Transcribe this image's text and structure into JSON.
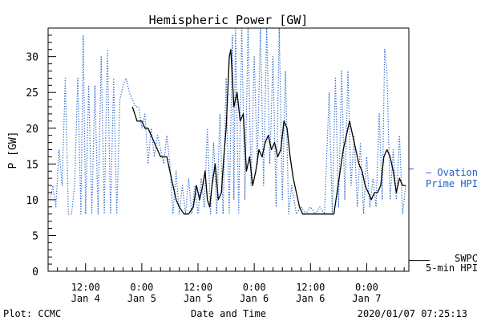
{
  "chart_data": {
    "type": "line",
    "title": "Hemispheric Power [GW]",
    "ylabel": "P [GW]",
    "xlabel": "Date and Time",
    "ylim": [
      0,
      34
    ],
    "xlim": [
      "2020-01-04T04:00",
      "2020-01-07T09:00"
    ],
    "yticks": [
      0,
      5,
      10,
      15,
      20,
      25,
      30
    ],
    "xticks": [
      {
        "time": "2020-01-04T12:00",
        "line1": "12:00",
        "line2": "Jan 4"
      },
      {
        "time": "2020-01-05T00:00",
        "line1": "0:00",
        "line2": "Jan 5"
      },
      {
        "time": "2020-01-05T12:00",
        "line1": "12:00",
        "line2": "Jan 5"
      },
      {
        "time": "2020-01-06T00:00",
        "line1": "0:00",
        "line2": "Jan 6"
      },
      {
        "time": "2020-01-06T12:00",
        "line1": "12:00",
        "line2": "Jan 6"
      },
      {
        "time": "2020-01-07T00:00",
        "line1": "0:00",
        "line2": "Jan 7"
      }
    ],
    "series": [
      {
        "name": "Ovation Prime HPI",
        "legend_lines": [
          "— Ovation",
          "Prime HPI"
        ],
        "color": "#1f5fc8",
        "style": "dotted",
        "points": [
          [
            "2020-01-04T04:30",
            10
          ],
          [
            "2020-01-04T05:00",
            12
          ],
          [
            "2020-01-04T05:40",
            9
          ],
          [
            "2020-01-04T06:20",
            17
          ],
          [
            "2020-01-04T07:00",
            12
          ],
          [
            "2020-01-04T07:40",
            27
          ],
          [
            "2020-01-04T08:20",
            8
          ],
          [
            "2020-01-04T09:00",
            8
          ],
          [
            "2020-01-04T09:40",
            12
          ],
          [
            "2020-01-04T10:20",
            27
          ],
          [
            "2020-01-04T11:00",
            8
          ],
          [
            "2020-01-04T11:30",
            33
          ],
          [
            "2020-01-04T12:00",
            8
          ],
          [
            "2020-01-04T12:40",
            26
          ],
          [
            "2020-01-04T13:20",
            8
          ],
          [
            "2020-01-04T14:00",
            26
          ],
          [
            "2020-01-04T14:40",
            8
          ],
          [
            "2020-01-04T15:20",
            30
          ],
          [
            "2020-01-04T16:00",
            8
          ],
          [
            "2020-01-04T16:40",
            31
          ],
          [
            "2020-01-04T17:20",
            8
          ],
          [
            "2020-01-04T18:00",
            27
          ],
          [
            "2020-01-04T18:40",
            8
          ],
          [
            "2020-01-04T19:20",
            24
          ],
          [
            "2020-01-04T20:00",
            26
          ],
          [
            "2020-01-04T20:40",
            27
          ],
          [
            "2020-01-04T21:20",
            25
          ],
          [
            "2020-01-04T22:00",
            24
          ],
          [
            "2020-01-04T22:40",
            23
          ],
          [
            "2020-01-04T23:20",
            23
          ],
          [
            "2020-01-05T00:00",
            20
          ],
          [
            "2020-01-05T00:40",
            22
          ],
          [
            "2020-01-05T01:20",
            15
          ],
          [
            "2020-01-05T02:00",
            20
          ],
          [
            "2020-01-05T02:40",
            16
          ],
          [
            "2020-01-05T03:20",
            19
          ],
          [
            "2020-01-05T04:00",
            17
          ],
          [
            "2020-01-05T04:40",
            15
          ],
          [
            "2020-01-05T05:20",
            19
          ],
          [
            "2020-01-05T06:00",
            15
          ],
          [
            "2020-01-05T06:40",
            8
          ],
          [
            "2020-01-05T07:20",
            14
          ],
          [
            "2020-01-05T08:00",
            8
          ],
          [
            "2020-01-05T08:40",
            12
          ],
          [
            "2020-01-05T09:20",
            8
          ],
          [
            "2020-01-05T10:00",
            13
          ],
          [
            "2020-01-05T10:40",
            8
          ],
          [
            "2020-01-05T11:20",
            12
          ],
          [
            "2020-01-05T12:00",
            8
          ],
          [
            "2020-01-05T12:40",
            13
          ],
          [
            "2020-01-05T13:20",
            9
          ],
          [
            "2020-01-05T14:00",
            20
          ],
          [
            "2020-01-05T14:40",
            8
          ],
          [
            "2020-01-05T15:20",
            18
          ],
          [
            "2020-01-05T16:00",
            8
          ],
          [
            "2020-01-05T16:40",
            22
          ],
          [
            "2020-01-05T17:20",
            8
          ],
          [
            "2020-01-05T18:00",
            27
          ],
          [
            "2020-01-05T18:40",
            8
          ],
          [
            "2020-01-05T19:20",
            33
          ],
          [
            "2020-01-05T19:40",
            10
          ],
          [
            "2020-01-05T20:00",
            34
          ],
          [
            "2020-01-05T20:40",
            8
          ],
          [
            "2020-01-05T21:20",
            34
          ],
          [
            "2020-01-05T22:00",
            10
          ],
          [
            "2020-01-05T22:40",
            34
          ],
          [
            "2020-01-05T23:20",
            12
          ],
          [
            "2020-01-06T00:00",
            30
          ],
          [
            "2020-01-06T00:40",
            15
          ],
          [
            "2020-01-06T01:20",
            34
          ],
          [
            "2020-01-06T02:00",
            12
          ],
          [
            "2020-01-06T02:40",
            34
          ],
          [
            "2020-01-06T03:20",
            15
          ],
          [
            "2020-01-06T04:00",
            30
          ],
          [
            "2020-01-06T04:40",
            9
          ],
          [
            "2020-01-06T05:20",
            34
          ],
          [
            "2020-01-06T06:00",
            10
          ],
          [
            "2020-01-06T06:40",
            28
          ],
          [
            "2020-01-06T07:20",
            8
          ],
          [
            "2020-01-06T08:00",
            12
          ],
          [
            "2020-01-06T09:00",
            8
          ],
          [
            "2020-01-06T10:00",
            9
          ],
          [
            "2020-01-06T11:00",
            8
          ],
          [
            "2020-01-06T12:00",
            9
          ],
          [
            "2020-01-06T13:00",
            8
          ],
          [
            "2020-01-06T14:00",
            9
          ],
          [
            "2020-01-06T15:00",
            8
          ],
          [
            "2020-01-06T16:00",
            25
          ],
          [
            "2020-01-06T16:40",
            8
          ],
          [
            "2020-01-06T17:20",
            27
          ],
          [
            "2020-01-06T18:00",
            9
          ],
          [
            "2020-01-06T18:40",
            28
          ],
          [
            "2020-01-06T19:20",
            10
          ],
          [
            "2020-01-06T20:00",
            28
          ],
          [
            "2020-01-06T20:40",
            12
          ],
          [
            "2020-01-06T21:20",
            19
          ],
          [
            "2020-01-06T22:00",
            9
          ],
          [
            "2020-01-06T22:40",
            18
          ],
          [
            "2020-01-06T23:20",
            8
          ],
          [
            "2020-01-07T00:00",
            16
          ],
          [
            "2020-01-07T00:40",
            9
          ],
          [
            "2020-01-07T01:20",
            13
          ],
          [
            "2020-01-07T02:00",
            9
          ],
          [
            "2020-01-07T02:40",
            22
          ],
          [
            "2020-01-07T03:20",
            10
          ],
          [
            "2020-01-07T03:50",
            31
          ],
          [
            "2020-01-07T04:20",
            28
          ],
          [
            "2020-01-07T05:00",
            10
          ],
          [
            "2020-01-07T05:40",
            17
          ],
          [
            "2020-01-07T06:20",
            10
          ],
          [
            "2020-01-07T07:00",
            19
          ],
          [
            "2020-01-07T07:40",
            8
          ],
          [
            "2020-01-07T08:20",
            12
          ]
        ]
      },
      {
        "name": "SWPC 5-min HPI",
        "legend_lines": [
          "SWPC",
          "5-min HPI"
        ],
        "color": "#000000",
        "style": "solid",
        "points": [
          [
            "2020-01-04T22:00",
            23
          ],
          [
            "2020-01-04T22:30",
            22
          ],
          [
            "2020-01-04T23:00",
            21
          ],
          [
            "2020-01-05T00:00",
            21
          ],
          [
            "2020-01-05T00:40",
            20
          ],
          [
            "2020-01-05T01:20",
            20
          ],
          [
            "2020-01-05T02:00",
            19
          ],
          [
            "2020-01-05T02:40",
            18
          ],
          [
            "2020-01-05T03:20",
            17
          ],
          [
            "2020-01-05T04:00",
            16
          ],
          [
            "2020-01-05T04:40",
            16
          ],
          [
            "2020-01-05T05:20",
            16
          ],
          [
            "2020-01-05T06:00",
            14
          ],
          [
            "2020-01-05T06:40",
            12
          ],
          [
            "2020-01-05T07:20",
            10
          ],
          [
            "2020-01-05T08:00",
            9
          ],
          [
            "2020-01-05T09:00",
            8
          ],
          [
            "2020-01-05T10:00",
            8
          ],
          [
            "2020-01-05T11:00",
            9
          ],
          [
            "2020-01-05T11:40",
            12
          ],
          [
            "2020-01-05T12:20",
            10
          ],
          [
            "2020-01-05T13:00",
            12
          ],
          [
            "2020-01-05T13:30",
            14
          ],
          [
            "2020-01-05T14:00",
            10
          ],
          [
            "2020-01-05T14:30",
            9
          ],
          [
            "2020-01-05T15:00",
            12
          ],
          [
            "2020-01-05T15:40",
            15
          ],
          [
            "2020-01-05T16:20",
            10
          ],
          [
            "2020-01-05T17:00",
            11
          ],
          [
            "2020-01-05T17:30",
            16
          ],
          [
            "2020-01-05T18:00",
            20
          ],
          [
            "2020-01-05T18:40",
            30
          ],
          [
            "2020-01-05T19:00",
            31
          ],
          [
            "2020-01-05T19:40",
            23
          ],
          [
            "2020-01-05T20:20",
            25
          ],
          [
            "2020-01-05T21:00",
            21
          ],
          [
            "2020-01-05T21:40",
            22
          ],
          [
            "2020-01-05T22:20",
            14
          ],
          [
            "2020-01-05T23:00",
            16
          ],
          [
            "2020-01-05T23:40",
            12
          ],
          [
            "2020-01-06T00:20",
            14
          ],
          [
            "2020-01-06T01:00",
            17
          ],
          [
            "2020-01-06T01:40",
            16
          ],
          [
            "2020-01-06T02:20",
            18
          ],
          [
            "2020-01-06T03:00",
            19
          ],
          [
            "2020-01-06T03:40",
            17
          ],
          [
            "2020-01-06T04:20",
            18
          ],
          [
            "2020-01-06T05:00",
            16
          ],
          [
            "2020-01-06T05:40",
            17
          ],
          [
            "2020-01-06T06:20",
            21
          ],
          [
            "2020-01-06T07:00",
            20
          ],
          [
            "2020-01-06T07:40",
            16
          ],
          [
            "2020-01-06T08:20",
            13
          ],
          [
            "2020-01-06T09:00",
            11
          ],
          [
            "2020-01-06T09:40",
            9
          ],
          [
            "2020-01-06T10:20",
            8
          ],
          [
            "2020-01-06T12:00",
            8
          ],
          [
            "2020-01-06T14:00",
            8
          ],
          [
            "2020-01-06T16:00",
            8
          ],
          [
            "2020-01-06T17:00",
            8
          ],
          [
            "2020-01-06T17:40",
            11
          ],
          [
            "2020-01-06T18:20",
            14
          ],
          [
            "2020-01-06T19:00",
            17
          ],
          [
            "2020-01-06T19:40",
            19
          ],
          [
            "2020-01-06T20:20",
            21
          ],
          [
            "2020-01-06T21:00",
            19
          ],
          [
            "2020-01-06T21:40",
            17
          ],
          [
            "2020-01-06T22:20",
            15
          ],
          [
            "2020-01-06T23:00",
            14
          ],
          [
            "2020-01-06T23:40",
            12
          ],
          [
            "2020-01-07T00:20",
            11
          ],
          [
            "2020-01-07T01:00",
            10
          ],
          [
            "2020-01-07T01:40",
            11
          ],
          [
            "2020-01-07T02:20",
            11
          ],
          [
            "2020-01-07T03:00",
            12
          ],
          [
            "2020-01-07T03:40",
            16
          ],
          [
            "2020-01-07T04:20",
            17
          ],
          [
            "2020-01-07T05:00",
            16
          ],
          [
            "2020-01-07T05:40",
            14
          ],
          [
            "2020-01-07T06:20",
            11
          ],
          [
            "2020-01-07T07:00",
            13
          ],
          [
            "2020-01-07T07:40",
            12
          ],
          [
            "2020-01-07T08:20",
            12
          ]
        ]
      }
    ]
  },
  "footer": {
    "plot_credit": "Plot: CCMC",
    "timestamp": "2020/01/07 07:25:13"
  }
}
